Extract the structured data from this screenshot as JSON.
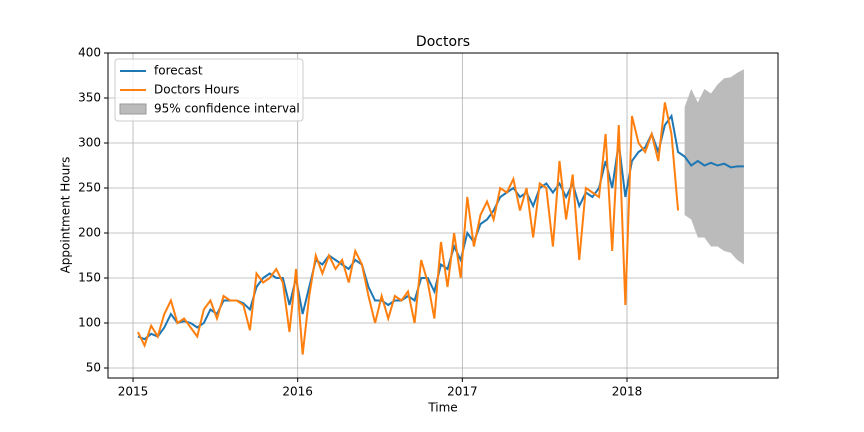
{
  "chart_data": {
    "type": "line",
    "title": "Doctors",
    "x_label": "Time",
    "y_label": "Appointment Hours",
    "x": [
      2015.03,
      2015.07,
      2015.11,
      2015.15,
      2015.19,
      2015.23,
      2015.27,
      2015.31,
      2015.35,
      2015.39,
      2015.43,
      2015.47,
      2015.51,
      2015.55,
      2015.59,
      2015.63,
      2015.67,
      2015.71,
      2015.75,
      2015.79,
      2015.83,
      2015.87,
      2015.91,
      2015.95,
      2015.99,
      2016.03,
      2016.07,
      2016.11,
      2016.15,
      2016.19,
      2016.23,
      2016.27,
      2016.31,
      2016.35,
      2016.39,
      2016.43,
      2016.47,
      2016.51,
      2016.55,
      2016.59,
      2016.63,
      2016.67,
      2016.71,
      2016.75,
      2016.79,
      2016.83,
      2016.87,
      2016.91,
      2016.95,
      2016.99,
      2017.03,
      2017.07,
      2017.11,
      2017.15,
      2017.19,
      2017.23,
      2017.27,
      2017.31,
      2017.35,
      2017.39,
      2017.43,
      2017.47,
      2017.51,
      2017.55,
      2017.59,
      2017.63,
      2017.67,
      2017.71,
      2017.75,
      2017.79,
      2017.83,
      2017.87,
      2017.91,
      2017.95,
      2017.99,
      2018.03,
      2018.07,
      2018.11,
      2018.15,
      2018.19,
      2018.23,
      2018.27,
      2018.31,
      2018.35,
      2018.39,
      2018.43,
      2018.47,
      2018.51,
      2018.55,
      2018.59,
      2018.63,
      2018.67,
      2018.71
    ],
    "series": [
      {
        "name": "forecast",
        "color": "#1f77b4",
        "values": [
          85,
          82,
          88,
          85,
          95,
          110,
          100,
          102,
          100,
          95,
          100,
          115,
          110,
          125,
          125,
          125,
          122,
          115,
          140,
          150,
          155,
          150,
          150,
          120,
          150,
          110,
          140,
          170,
          165,
          175,
          170,
          165,
          160,
          170,
          165,
          140,
          125,
          125,
          120,
          125,
          125,
          130,
          125,
          150,
          150,
          135,
          165,
          160,
          185,
          170,
          200,
          190,
          210,
          215,
          225,
          240,
          245,
          250,
          240,
          245,
          230,
          250,
          255,
          245,
          255,
          240,
          255,
          230,
          245,
          240,
          250,
          280,
          250,
          300,
          240,
          280,
          290,
          295,
          310,
          290,
          320,
          330,
          290,
          285,
          275,
          280,
          275,
          278,
          275,
          277,
          273,
          274,
          274
        ]
      },
      {
        "name": "Doctors Hours",
        "color": "#ff7f0e",
        "values": [
          90,
          75,
          97,
          85,
          110,
          125,
          100,
          105,
          95,
          85,
          115,
          125,
          105,
          130,
          125,
          125,
          120,
          92,
          155,
          145,
          150,
          160,
          145,
          90,
          160,
          65,
          130,
          175,
          155,
          175,
          160,
          170,
          145,
          180,
          165,
          130,
          100,
          130,
          105,
          130,
          125,
          135,
          100,
          170,
          145,
          105,
          190,
          140,
          200,
          150,
          240,
          185,
          220,
          235,
          215,
          250,
          245,
          260,
          225,
          250,
          195,
          255,
          250,
          185,
          280,
          215,
          265,
          170,
          250,
          245,
          240,
          310,
          180,
          320,
          120,
          330,
          300,
          290,
          310,
          280,
          345,
          310,
          225,
          null,
          null,
          null,
          null,
          null,
          null,
          null,
          null,
          null,
          null
        ]
      }
    ],
    "confidence_interval": {
      "name": "95% confidence interval",
      "color": "#bbbbbb",
      "x": [
        2018.35,
        2018.39,
        2018.43,
        2018.47,
        2018.51,
        2018.55,
        2018.59,
        2018.63,
        2018.67,
        2018.71
      ],
      "upper": [
        340,
        360,
        345,
        360,
        355,
        365,
        372,
        373,
        378,
        382
      ],
      "lower": [
        220,
        215,
        195,
        195,
        185,
        185,
        180,
        178,
        170,
        165
      ]
    },
    "xlim": [
      2014.848,
      2018.917
    ],
    "xticks": [
      2015,
      2016,
      2017,
      2018
    ],
    "ylim": [
      38.9,
      400
    ],
    "yticks": [
      50,
      100,
      150,
      200,
      250,
      300,
      350,
      400
    ],
    "grid": true,
    "legend": "upper left"
  }
}
